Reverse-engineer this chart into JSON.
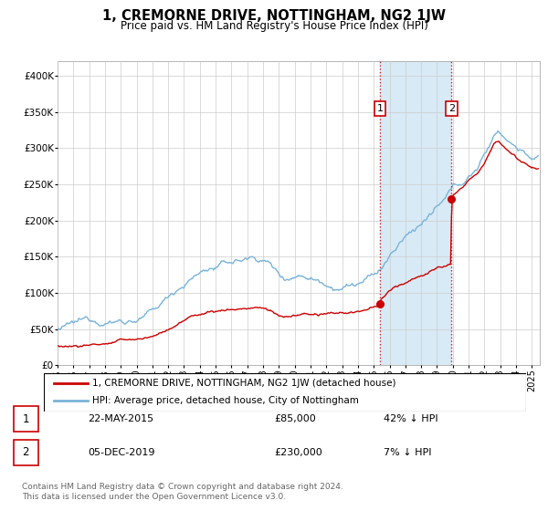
{
  "title": "1, CREMORNE DRIVE, NOTTINGHAM, NG2 1JW",
  "subtitle": "Price paid vs. HM Land Registry's House Price Index (HPI)",
  "title_fontsize": 10.5,
  "subtitle_fontsize": 9,
  "ylabel_values": [
    "£0",
    "£50K",
    "£100K",
    "£150K",
    "£200K",
    "£250K",
    "£300K",
    "£350K",
    "£400K"
  ],
  "ytick_values": [
    0,
    50000,
    100000,
    150000,
    200000,
    250000,
    300000,
    350000,
    400000
  ],
  "ylim": [
    0,
    420000
  ],
  "hpi_color": "#7ab4d8",
  "hpi_fill_color": "#d8eaf5",
  "price_color": "#cc0000",
  "bg_color": "#ffffff",
  "grid_color": "#cccccc",
  "purchase1_date_x": 2015.39,
  "purchase1_price": 85000,
  "purchase2_date_x": 2019.92,
  "purchase2_price": 230000,
  "legend_label_red": "1, CREMORNE DRIVE, NOTTINGHAM, NG2 1JW (detached house)",
  "legend_label_blue": "HPI: Average price, detached house, City of Nottingham",
  "footer": "Contains HM Land Registry data © Crown copyright and database right 2024.\nThis data is licensed under the Open Government Licence v3.0.",
  "xmin": 1995,
  "xmax": 2025.5,
  "hpi_start_year": 1995,
  "hpi_end_year": 2025.5
}
